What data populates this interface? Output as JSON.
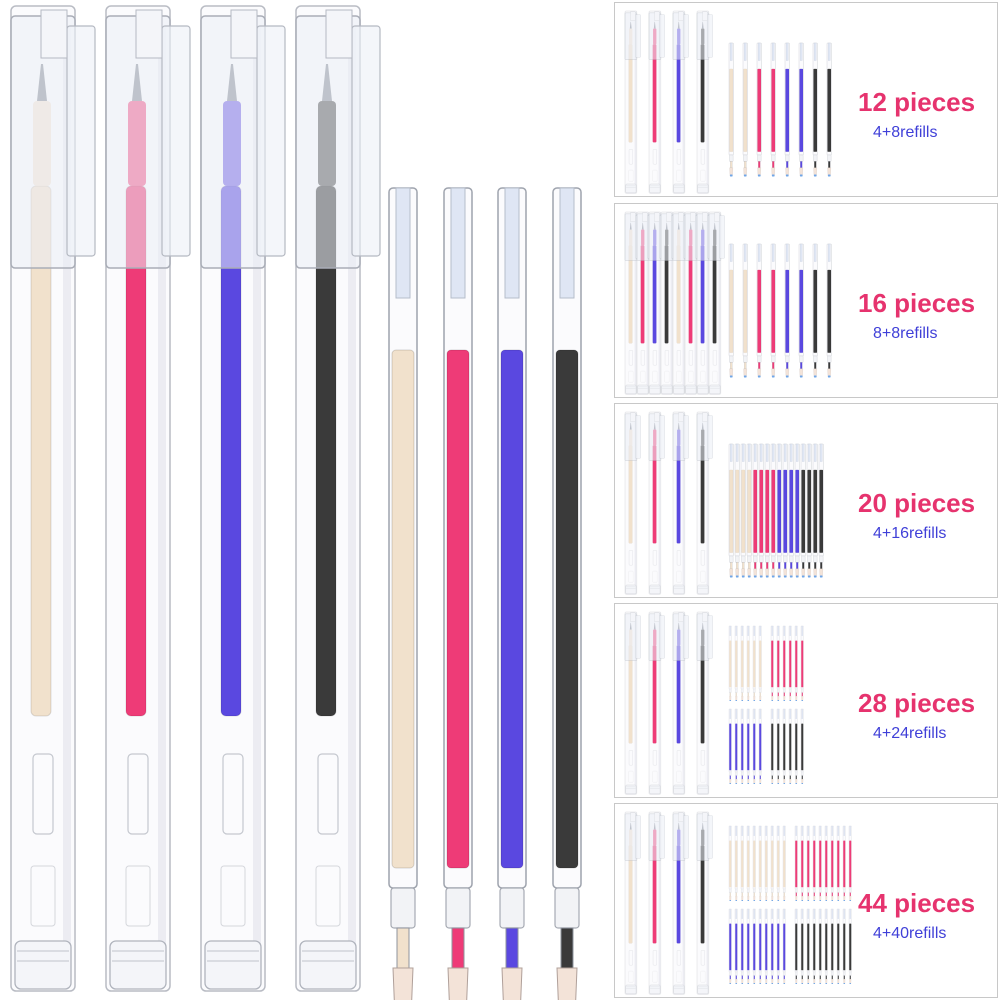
{
  "palette": {
    "ink_colors": [
      "#f1e1cc",
      "#ee3b77",
      "#5a48e0",
      "#3a3a3a"
    ],
    "title_color": "#e6336e",
    "subtitle_color": "#4040d8",
    "border_color": "#c8c8c8"
  },
  "product": {
    "pens": [
      {
        "ink": "beige"
      },
      {
        "ink": "pink"
      },
      {
        "ink": "purple"
      },
      {
        "ink": "black"
      }
    ],
    "refills": [
      {
        "ink": "beige"
      },
      {
        "ink": "pink"
      },
      {
        "ink": "purple"
      },
      {
        "ink": "black"
      }
    ]
  },
  "options": [
    {
      "title": "12 pieces",
      "subtitle": "4+8refills",
      "pens": 4,
      "refills": 8
    },
    {
      "title": "16 pieces",
      "subtitle": "8+8refills",
      "pens": 8,
      "refills": 8
    },
    {
      "title": "20 pieces",
      "subtitle": "4+16refills",
      "pens": 4,
      "refills": 16
    },
    {
      "title": "28 pieces",
      "subtitle": "4+24refills",
      "pens": 4,
      "refills": 24
    },
    {
      "title": "44 pieces",
      "subtitle": "4+40refills",
      "pens": 4,
      "refills": 40
    }
  ]
}
